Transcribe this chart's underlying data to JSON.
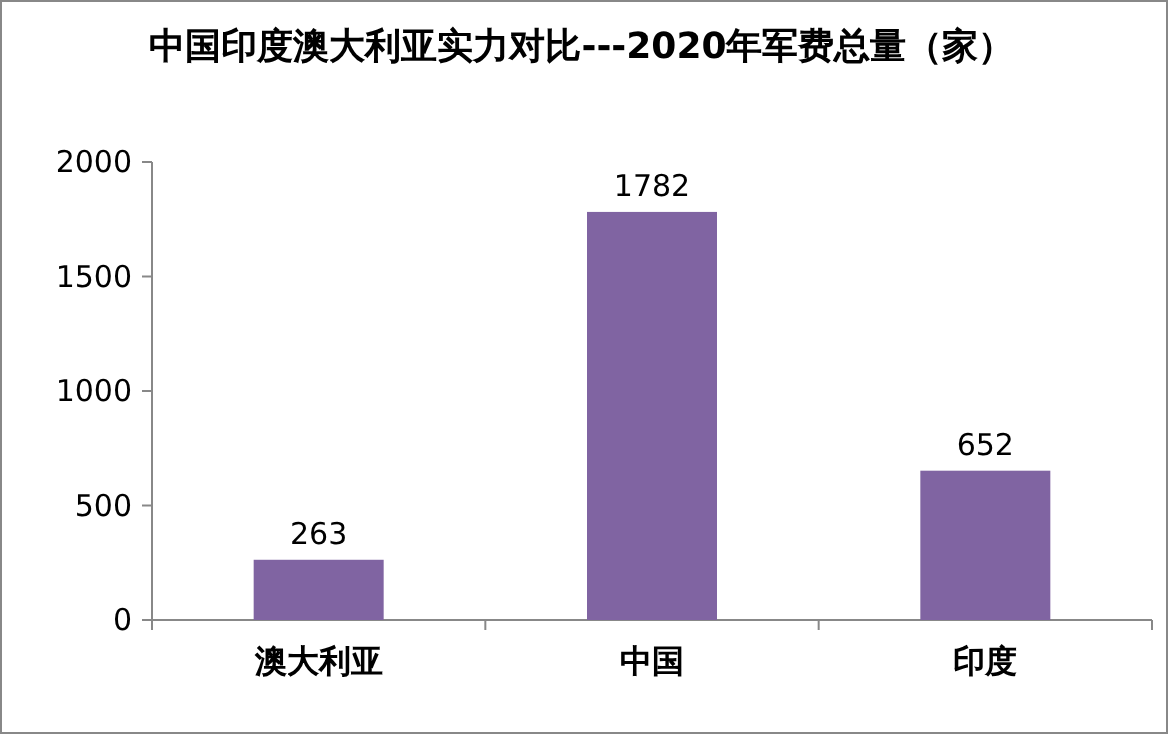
{
  "chart_data": {
    "type": "bar",
    "title": "中国印度澳大利亚实力对比---2020年军费总量（家）",
    "categories": [
      "澳大利亚",
      "中国",
      "印度"
    ],
    "values": [
      263,
      1782,
      652
    ],
    "color": "#8064a2",
    "ylim": [
      0,
      2000
    ],
    "yticks": [
      0,
      500,
      1000,
      1500,
      2000
    ],
    "data_labels": true,
    "grid": false
  }
}
